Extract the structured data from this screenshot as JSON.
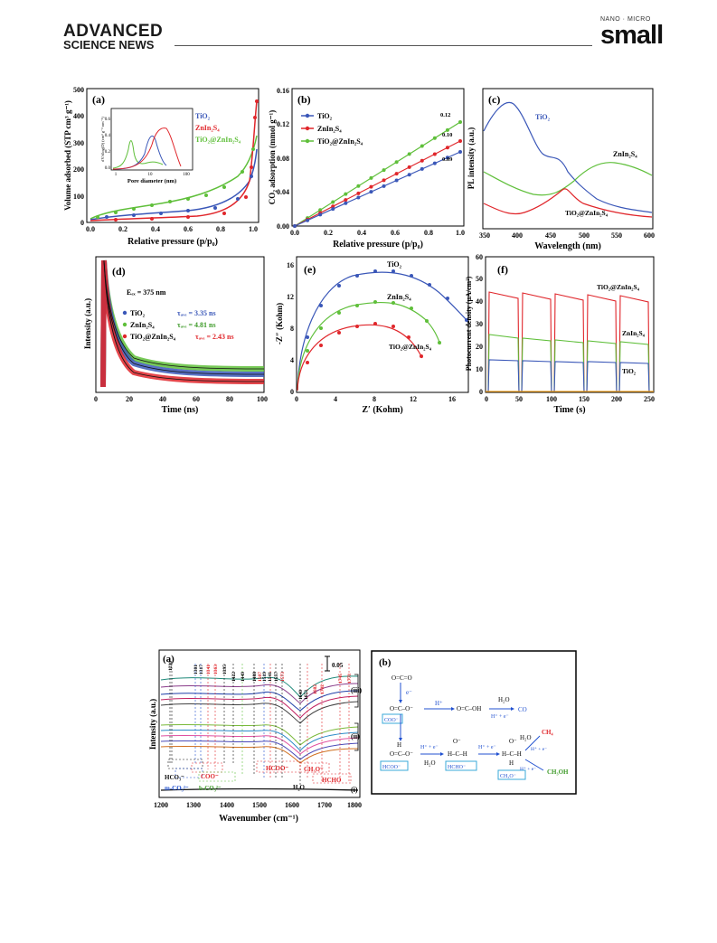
{
  "header": {
    "journal_left_line1": "ADVANCED",
    "journal_left_line2": "SCIENCE NEWS",
    "journal_right_small": "NANO · MICRO",
    "journal_right_big": "small"
  },
  "colors": {
    "blue": "#3a57b8",
    "red": "#e0262b",
    "green": "#5fbf3a",
    "blue_text": "#3b4fb5",
    "red_text": "#e0262b",
    "green_text": "#3f9b2a"
  },
  "figure_top": {
    "panel_a": {
      "label": "(a)",
      "xlabel": "Relative pressure (p/p₀)",
      "ylabel": "Volume adsorbed (STP cm³ g⁻¹)",
      "xticks": [
        "0.0",
        "0.2",
        "0.4",
        "0.6",
        "0.8",
        "1.0"
      ],
      "yticks": [
        "0",
        "100",
        "200",
        "300",
        "400",
        "500"
      ],
      "legend": [
        "TiO₂",
        "ZnIn₂S₄",
        "TiO₂@ZnIn₂S₄"
      ],
      "inset": {
        "xlabel": "Pore diameter (nm)",
        "ylabel": "dV/dlog(D) (cm³ g⁻¹ nm⁻¹)",
        "xticks": [
          "1",
          "10",
          "100"
        ],
        "yticks": [
          "0.0",
          "0.2",
          "0.4",
          "0.6"
        ]
      }
    },
    "panel_b": {
      "label": "(b)",
      "xlabel": "Relative pressure (p/p₀)",
      "ylabel": "CO₂ adsorption (mmol g⁻¹)",
      "xticks": [
        "0.0",
        "0.2",
        "0.4",
        "0.6",
        "0.8",
        "1.0"
      ],
      "yticks": [
        "0.00",
        "0.04",
        "0.08",
        "0.12",
        "0.16"
      ],
      "legend": [
        "TiO₂",
        "ZnIn₂S₄",
        "TiO₂@ZnIn₂S₄"
      ],
      "end_labels": [
        "0.12",
        "0.10",
        "0.09"
      ]
    },
    "panel_c": {
      "label": "(c)",
      "xlabel": "Wavelength (nm)",
      "ylabel": "PL intensity (a.u.)",
      "xticks": [
        "350",
        "400",
        "450",
        "500",
        "550",
        "600"
      ],
      "annotations": [
        "TiO₂",
        "ZnIn₂S₄",
        "TiO₂@ZnIn₂S₄"
      ]
    },
    "panel_d": {
      "label": "(d)",
      "xlabel": "Time (ns)",
      "ylabel": "Intensity (a.u.)",
      "xticks": [
        "0",
        "20",
        "40",
        "60",
        "80",
        "100"
      ],
      "excitation": "Eₑₓ = 375 nm",
      "legend": [
        {
          "name": "TiO₂",
          "tau": "τₐᵥₑ = 3.35 ns"
        },
        {
          "name": "ZnIn₂S₄",
          "tau": "τₐᵥₑ = 4.81 ns"
        },
        {
          "name": "TiO₂@ZnIn₂S₄",
          "tau": "τₐᵥₑ = 2.43 ns"
        }
      ]
    },
    "panel_e": {
      "label": "(e)",
      "xlabel": "Z′ (Kohm)",
      "ylabel": "-Z″ (Kohm)",
      "xticks": [
        "0",
        "4",
        "8",
        "12",
        "16"
      ],
      "yticks": [
        "0",
        "4",
        "8",
        "12",
        "16"
      ],
      "annotations": [
        "TiO₂",
        "ZnIn₂S₄",
        "TiO₂@ZnIn₂S₄"
      ]
    },
    "panel_f": {
      "label": "(f)",
      "xlabel": "Time (s)",
      "ylabel": "Photocurrent density (μA/cm²)",
      "xticks": [
        "0",
        "50",
        "100",
        "150",
        "200",
        "250"
      ],
      "yticks": [
        "0",
        "10",
        "20",
        "30",
        "40",
        "50",
        "60"
      ],
      "annotations": [
        "TiO₂@ZnIn₂S₄",
        "ZnIn₂S₄",
        "TiO₂"
      ]
    }
  },
  "figure_bottom": {
    "panel_a": {
      "label": "(a)",
      "xlabel": "Wavenumber (cm⁻¹)",
      "ylabel": "Intensity (a.u.)",
      "xticks": [
        "1200",
        "1300",
        "1400",
        "1500",
        "1600",
        "1700",
        "1800"
      ],
      "scale_bar": "0.05",
      "peaks_black": [
        "1230",
        "1223",
        "1301",
        "1317",
        "1395",
        "1422",
        "1449",
        "1488",
        "1519",
        "1541",
        "1557",
        "1640",
        "1653"
      ],
      "peaks_red": [
        "1341",
        "1363",
        "1507",
        "1573",
        "1682",
        "1702",
        "1745",
        "1773"
      ],
      "group_labels": [
        "HCO₃⁻",
        "COO⁻",
        "m-CO₃²⁻",
        "b-CO₃²⁻",
        "HCOO⁻",
        "CH₃O⁻",
        "HCHO",
        "H₂O"
      ],
      "curve_group_labels": [
        "(iii)",
        "(ii)",
        "(i)"
      ]
    },
    "panel_b": {
      "label": "(b)",
      "species": [
        "O=C=O",
        "e⁻",
        "O=C–O⁻",
        "COO⁻",
        "H⁺",
        "O=C–OH",
        "H₂O",
        "H⁺ + e⁻",
        "CO",
        "H",
        "O=C–O⁻",
        "HCOO⁻",
        "H⁺ + e⁻",
        "H₂O",
        "O⁻",
        "H–C–H",
        "HCHO⁻",
        "H⁺ + e⁻",
        "O⁻",
        "H–C–H",
        "H",
        "CH₃O⁻",
        "H₂O",
        "H⁺ + e⁻",
        "CH₄",
        "H⁺ + e⁻",
        "CH₃OH"
      ]
    }
  }
}
